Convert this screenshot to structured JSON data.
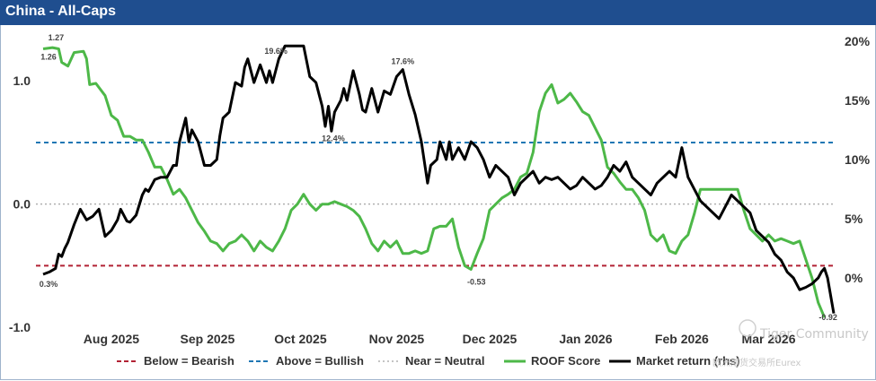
{
  "title": "China - All-Caps",
  "watermark": {
    "line1": "Tiger Community",
    "line2": "欧洲期货交易所Eurex"
  },
  "colors": {
    "roof": "#4db848",
    "market": "#000000",
    "bearish": "#b22234",
    "bullish": "#1f77b4",
    "neutral": "#b0b0b0",
    "title_bg": "#1f4e8f"
  },
  "chart_data": {
    "type": "line",
    "title": "China - All-Caps",
    "left_axis": {
      "ylim": [
        -1.05,
        1.38
      ],
      "ticks": [
        1.0,
        0.0,
        -1.0
      ],
      "tick_labels": [
        "1.0",
        "0.0",
        "-1.0"
      ]
    },
    "right_axis": {
      "ylim": [
        -4.7,
        20.6
      ],
      "ticks": [
        20,
        15,
        10,
        5,
        0
      ],
      "tick_labels": [
        "20%",
        "15%",
        "10%",
        "5%",
        "0%"
      ]
    },
    "x_ticks": [
      {
        "label": "Aug 2025",
        "day": 22
      },
      {
        "label": "Sep 2025",
        "day": 53
      },
      {
        "label": "Oct 2025",
        "day": 83
      },
      {
        "label": "Nov 2025",
        "day": 114
      },
      {
        "label": "Dec 2025",
        "day": 144
      },
      {
        "label": "Jan 2026",
        "day": 175
      },
      {
        "label": "Feb 2026",
        "day": 206
      },
      {
        "label": "Mar 2026",
        "day": 234
      }
    ],
    "xlim": [
      0,
      255
    ],
    "reference_lines": [
      {
        "name": "Below = Bearish",
        "value": -0.5
      },
      {
        "name": "Above = Bullish",
        "value": 0.5
      },
      {
        "name": "Near = Neutral",
        "value": 0.0
      }
    ],
    "series": [
      {
        "name": "ROOF Score",
        "axis": "left",
        "points": [
          [
            0,
            1.26
          ],
          [
            3,
            1.27
          ],
          [
            5,
            1.26
          ],
          [
            6,
            1.15
          ],
          [
            8,
            1.12
          ],
          [
            10,
            1.23
          ],
          [
            13,
            1.24
          ],
          [
            14,
            1.18
          ],
          [
            15,
            0.97
          ],
          [
            17,
            0.98
          ],
          [
            20,
            0.88
          ],
          [
            22,
            0.72
          ],
          [
            24,
            0.68
          ],
          [
            26,
            0.55
          ],
          [
            28,
            0.55
          ],
          [
            30,
            0.52
          ],
          [
            32,
            0.52
          ],
          [
            34,
            0.42
          ],
          [
            36,
            0.3
          ],
          [
            38,
            0.3
          ],
          [
            40,
            0.2
          ],
          [
            42,
            0.08
          ],
          [
            44,
            0.12
          ],
          [
            46,
            0.05
          ],
          [
            48,
            -0.05
          ],
          [
            50,
            -0.15
          ],
          [
            52,
            -0.22
          ],
          [
            54,
            -0.3
          ],
          [
            56,
            -0.32
          ],
          [
            58,
            -0.38
          ],
          [
            60,
            -0.32
          ],
          [
            62,
            -0.3
          ],
          [
            64,
            -0.25
          ],
          [
            66,
            -0.3
          ],
          [
            68,
            -0.38
          ],
          [
            70,
            -0.3
          ],
          [
            72,
            -0.35
          ],
          [
            74,
            -0.38
          ],
          [
            76,
            -0.3
          ],
          [
            78,
            -0.2
          ],
          [
            80,
            -0.05
          ],
          [
            82,
            0.0
          ],
          [
            84,
            0.08
          ],
          [
            86,
            0.0
          ],
          [
            88,
            -0.05
          ],
          [
            90,
            0.0
          ],
          [
            92,
            0.0
          ],
          [
            94,
            0.02
          ],
          [
            96,
            0.0
          ],
          [
            98,
            -0.02
          ],
          [
            100,
            -0.05
          ],
          [
            102,
            -0.1
          ],
          [
            104,
            -0.2
          ],
          [
            106,
            -0.32
          ],
          [
            108,
            -0.38
          ],
          [
            110,
            -0.3
          ],
          [
            112,
            -0.35
          ],
          [
            114,
            -0.3
          ],
          [
            116,
            -0.4
          ],
          [
            118,
            -0.4
          ],
          [
            120,
            -0.38
          ],
          [
            122,
            -0.4
          ],
          [
            124,
            -0.38
          ],
          [
            126,
            -0.2
          ],
          [
            128,
            -0.18
          ],
          [
            130,
            -0.18
          ],
          [
            132,
            -0.12
          ],
          [
            134,
            -0.35
          ],
          [
            136,
            -0.5
          ],
          [
            138,
            -0.53
          ],
          [
            140,
            -0.4
          ],
          [
            142,
            -0.28
          ],
          [
            144,
            -0.05
          ],
          [
            146,
            0.0
          ],
          [
            148,
            0.05
          ],
          [
            150,
            0.08
          ],
          [
            152,
            0.12
          ],
          [
            154,
            0.22
          ],
          [
            156,
            0.25
          ],
          [
            158,
            0.42
          ],
          [
            160,
            0.75
          ],
          [
            162,
            0.9
          ],
          [
            164,
            0.97
          ],
          [
            166,
            0.82
          ],
          [
            168,
            0.85
          ],
          [
            170,
            0.9
          ],
          [
            172,
            0.83
          ],
          [
            174,
            0.75
          ],
          [
            176,
            0.72
          ],
          [
            178,
            0.62
          ],
          [
            180,
            0.52
          ],
          [
            182,
            0.3
          ],
          [
            184,
            0.25
          ],
          [
            186,
            0.18
          ],
          [
            188,
            0.12
          ],
          [
            190,
            0.12
          ],
          [
            192,
            0.05
          ],
          [
            194,
            -0.05
          ],
          [
            196,
            -0.25
          ],
          [
            198,
            -0.3
          ],
          [
            200,
            -0.25
          ],
          [
            202,
            -0.38
          ],
          [
            204,
            -0.4
          ],
          [
            206,
            -0.3
          ],
          [
            208,
            -0.25
          ],
          [
            210,
            -0.08
          ],
          [
            212,
            0.12
          ],
          [
            214,
            0.12
          ],
          [
            216,
            0.12
          ],
          [
            218,
            0.12
          ],
          [
            220,
            0.12
          ],
          [
            222,
            0.12
          ],
          [
            224,
            0.12
          ],
          [
            226,
            -0.05
          ],
          [
            228,
            -0.2
          ],
          [
            230,
            -0.25
          ],
          [
            232,
            -0.3
          ],
          [
            234,
            -0.25
          ],
          [
            236,
            -0.3
          ],
          [
            238,
            -0.28
          ],
          [
            240,
            -0.3
          ],
          [
            242,
            -0.32
          ],
          [
            244,
            -0.3
          ],
          [
            246,
            -0.45
          ],
          [
            248,
            -0.6
          ],
          [
            250,
            -0.8
          ],
          [
            252,
            -0.92
          ]
        ]
      },
      {
        "name": "Market return (rhs)",
        "axis": "right",
        "points": [
          [
            0,
            0.3
          ],
          [
            2,
            0.5
          ],
          [
            4,
            0.8
          ],
          [
            5,
            2.0
          ],
          [
            6,
            1.8
          ],
          [
            7,
            2.5
          ],
          [
            8,
            3.0
          ],
          [
            10,
            4.5
          ],
          [
            12,
            5.8
          ],
          [
            14,
            4.9
          ],
          [
            16,
            5.2
          ],
          [
            18,
            5.8
          ],
          [
            20,
            3.5
          ],
          [
            22,
            4.0
          ],
          [
            24,
            4.9
          ],
          [
            25,
            5.8
          ],
          [
            27,
            4.8
          ],
          [
            28,
            4.7
          ],
          [
            30,
            5.3
          ],
          [
            32,
            7.0
          ],
          [
            33,
            7.5
          ],
          [
            34,
            7.3
          ],
          [
            36,
            8.3
          ],
          [
            38,
            8.5
          ],
          [
            40,
            8.5
          ],
          [
            42,
            9.5
          ],
          [
            43,
            9.5
          ],
          [
            44,
            11.5
          ],
          [
            46,
            13.5
          ],
          [
            47,
            11.5
          ],
          [
            48,
            12.5
          ],
          [
            50,
            11.5
          ],
          [
            52,
            9.5
          ],
          [
            54,
            9.5
          ],
          [
            56,
            10.0
          ],
          [
            57,
            12.0
          ],
          [
            58,
            13.5
          ],
          [
            60,
            14.0
          ],
          [
            62,
            16.5
          ],
          [
            64,
            16.2
          ],
          [
            65,
            17.8
          ],
          [
            66,
            18.5
          ],
          [
            68,
            16.5
          ],
          [
            70,
            18.0
          ],
          [
            72,
            16.5
          ],
          [
            73,
            17.5
          ],
          [
            74,
            16.5
          ],
          [
            76,
            18.5
          ],
          [
            78,
            19.6
          ],
          [
            80,
            19.6
          ],
          [
            82,
            19.6
          ],
          [
            84,
            19.6
          ],
          [
            86,
            17.0
          ],
          [
            88,
            16.5
          ],
          [
            89,
            15.5
          ],
          [
            90,
            14.5
          ],
          [
            91,
            12.8
          ],
          [
            92,
            14.5
          ],
          [
            93,
            12.4
          ],
          [
            94,
            14.0
          ],
          [
            96,
            15.0
          ],
          [
            97,
            16.0
          ],
          [
            98,
            15.0
          ],
          [
            100,
            17.5
          ],
          [
            102,
            15.5
          ],
          [
            103,
            14.2
          ],
          [
            104,
            14.0
          ],
          [
            106,
            16.0
          ],
          [
            108,
            14.0
          ],
          [
            110,
            15.8
          ],
          [
            112,
            15.5
          ],
          [
            114,
            17.0
          ],
          [
            116,
            17.6
          ],
          [
            118,
            15.5
          ],
          [
            120,
            13.8
          ],
          [
            122,
            11.5
          ],
          [
            124,
            8.0
          ],
          [
            125,
            9.5
          ],
          [
            127,
            10.0
          ],
          [
            128,
            11.5
          ],
          [
            130,
            10.0
          ],
          [
            131,
            11.5
          ],
          [
            132,
            10.0
          ],
          [
            134,
            11.0
          ],
          [
            136,
            10.0
          ],
          [
            138,
            11.5
          ],
          [
            140,
            11.0
          ],
          [
            142,
            10.0
          ],
          [
            144,
            8.5
          ],
          [
            146,
            9.5
          ],
          [
            148,
            9.0
          ],
          [
            150,
            8.5
          ],
          [
            152,
            7.0
          ],
          [
            154,
            8.0
          ],
          [
            156,
            8.5
          ],
          [
            158,
            9.0
          ],
          [
            160,
            8.0
          ],
          [
            162,
            8.5
          ],
          [
            164,
            8.3
          ],
          [
            166,
            8.5
          ],
          [
            168,
            8.0
          ],
          [
            170,
            7.5
          ],
          [
            172,
            7.8
          ],
          [
            174,
            8.5
          ],
          [
            176,
            8.0
          ],
          [
            178,
            7.5
          ],
          [
            180,
            7.8
          ],
          [
            182,
            8.5
          ],
          [
            184,
            9.5
          ],
          [
            186,
            9.0
          ],
          [
            188,
            9.8
          ],
          [
            190,
            8.5
          ],
          [
            192,
            8.0
          ],
          [
            194,
            7.5
          ],
          [
            196,
            7.0
          ],
          [
            198,
            8.0
          ],
          [
            200,
            8.5
          ],
          [
            202,
            9.0
          ],
          [
            204,
            8.5
          ],
          [
            206,
            11.0
          ],
          [
            208,
            8.5
          ],
          [
            210,
            7.5
          ],
          [
            212,
            6.5
          ],
          [
            214,
            6.0
          ],
          [
            216,
            5.5
          ],
          [
            218,
            5.0
          ],
          [
            220,
            6.0
          ],
          [
            222,
            7.0
          ],
          [
            224,
            6.5
          ],
          [
            226,
            6.0
          ],
          [
            228,
            5.5
          ],
          [
            230,
            4.0
          ],
          [
            232,
            3.5
          ],
          [
            234,
            3.0
          ],
          [
            236,
            2.0
          ],
          [
            238,
            1.5
          ],
          [
            240,
            0.5
          ],
          [
            242,
            0.0
          ],
          [
            244,
            -1.0
          ],
          [
            246,
            -0.8
          ],
          [
            248,
            -0.5
          ],
          [
            250,
            0.0
          ],
          [
            251,
            0.5
          ],
          [
            252,
            0.8
          ],
          [
            253,
            0.0
          ],
          [
            255,
            -3.0
          ]
        ]
      }
    ],
    "annotations": [
      {
        "text": "1.27",
        "series": "ROOF Score",
        "at": "start-high"
      },
      {
        "text": "1.26",
        "series": "ROOF Score",
        "at": "start"
      },
      {
        "text": "0.3%",
        "series": "Market return (rhs)",
        "at": "start"
      },
      {
        "text": "19.6%",
        "series": "Market return (rhs)",
        "at": "high"
      },
      {
        "text": "12.4%",
        "series": "Market return (rhs)",
        "at": "local-low"
      },
      {
        "text": "17.6%",
        "series": "Market return (rhs)",
        "at": "local-high"
      },
      {
        "text": "-0.53",
        "series": "ROOF Score",
        "at": "low"
      },
      {
        "text": "-0.92",
        "series": "ROOF Score",
        "at": "end"
      }
    ],
    "legend": {
      "position": "bottom",
      "items": [
        {
          "label": "Below = Bearish",
          "style": "dash-red"
        },
        {
          "label": "Above = Bullish",
          "style": "dash-blue"
        },
        {
          "label": "Near = Neutral",
          "style": "dot-grey"
        },
        {
          "label": "ROOF Score",
          "style": "solid-green"
        },
        {
          "label": "Market return (rhs)",
          "style": "solid-black"
        }
      ]
    }
  }
}
